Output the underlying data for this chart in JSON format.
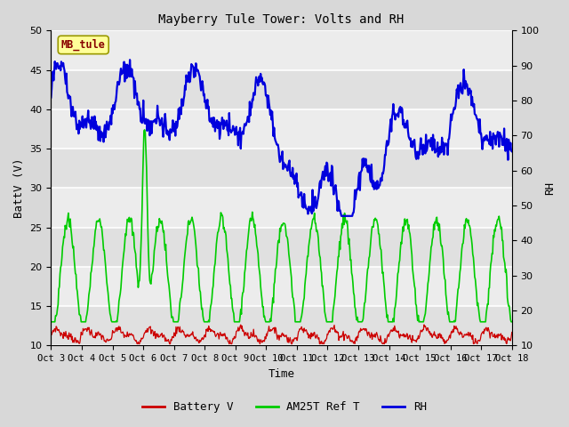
{
  "title": "Mayberry Tule Tower: Volts and RH",
  "xlabel": "Time",
  "ylabel_left": "BattV (V)",
  "ylabel_right": "RH",
  "station_label": "MB_tule",
  "ylim_left": [
    10,
    50
  ],
  "ylim_right": [
    10,
    100
  ],
  "yticks_left": [
    10,
    15,
    20,
    25,
    30,
    35,
    40,
    45,
    50
  ],
  "yticks_right": [
    10,
    20,
    30,
    40,
    50,
    60,
    70,
    80,
    90,
    100
  ],
  "xtick_labels": [
    "Oct 3",
    "Oct 4",
    "Oct 5",
    "Oct 6",
    "Oct 7",
    "Oct 8",
    "Oct 9",
    "Oct 10",
    "Oct 11",
    "Oct 12",
    "Oct 13",
    "Oct 14",
    "Oct 15",
    "Oct 16",
    "Oct 17",
    "Oct 18"
  ],
  "color_battery": "#cc0000",
  "color_am25t": "#00cc00",
  "color_rh": "#0000dd",
  "bg_color": "#d8d8d8",
  "plot_bg_color_light": "#e8e8e8",
  "plot_bg_color_dark": "#d0d0d0",
  "legend_labels": [
    "Battery V",
    "AM25T Ref T",
    "RH"
  ],
  "n_days": 15,
  "n_points_per_day": 48
}
